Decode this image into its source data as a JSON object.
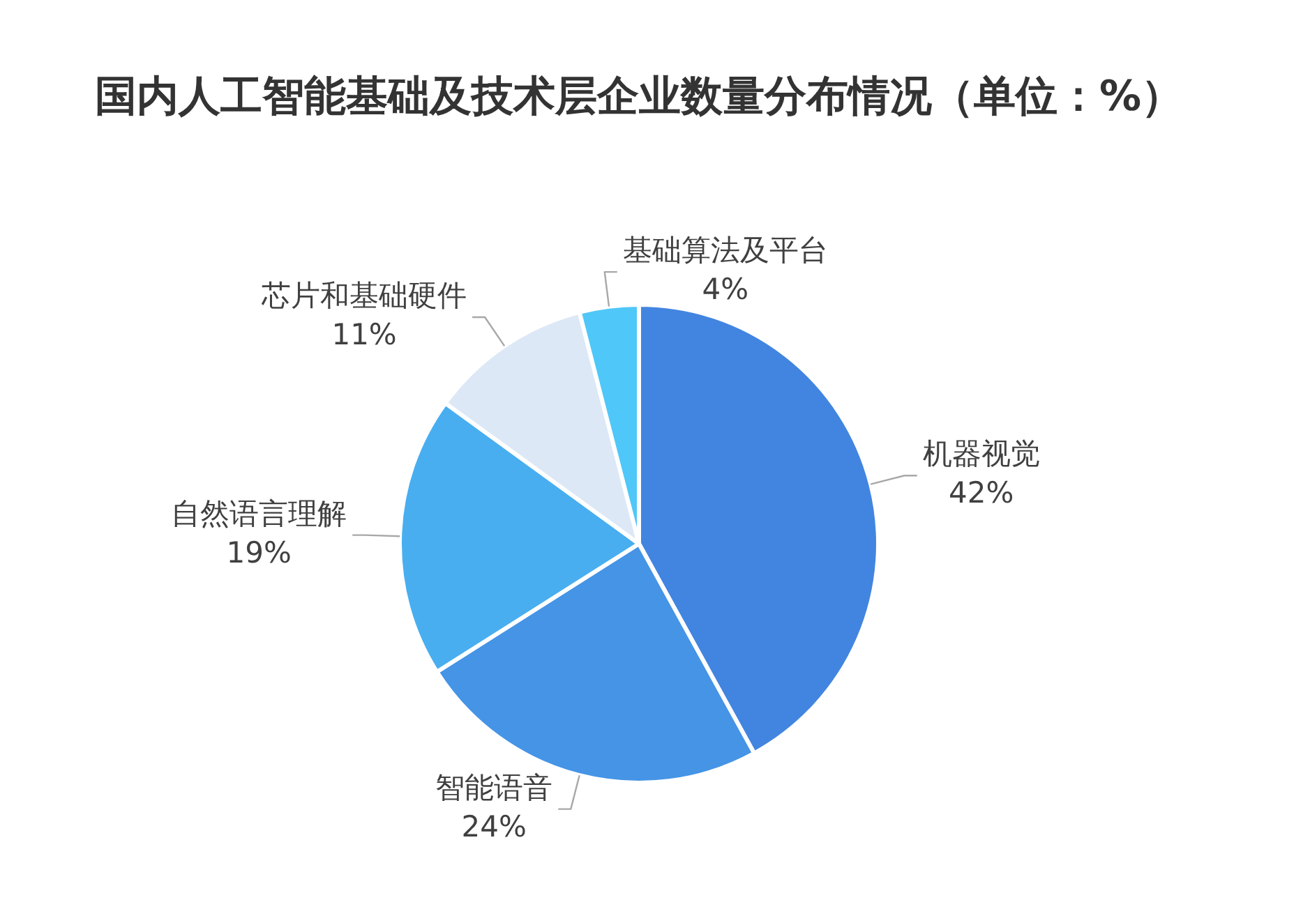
{
  "chart_data": {
    "type": "pie",
    "title": "国内人工智能基础及技术层企业数量分布情况（单位：%）",
    "categories": [
      "机器视觉",
      "智能语音",
      "自然语言理解",
      "芯片和基础硬件",
      "基础算法及平台"
    ],
    "values": [
      42,
      24,
      19,
      11,
      4
    ],
    "colors": [
      "#4285e0",
      "#4594e6",
      "#48aef0",
      "#dce8f6",
      "#4fc7f8"
    ],
    "value_labels": [
      "42%",
      "24%",
      "19%",
      "11%",
      "4%"
    ]
  }
}
